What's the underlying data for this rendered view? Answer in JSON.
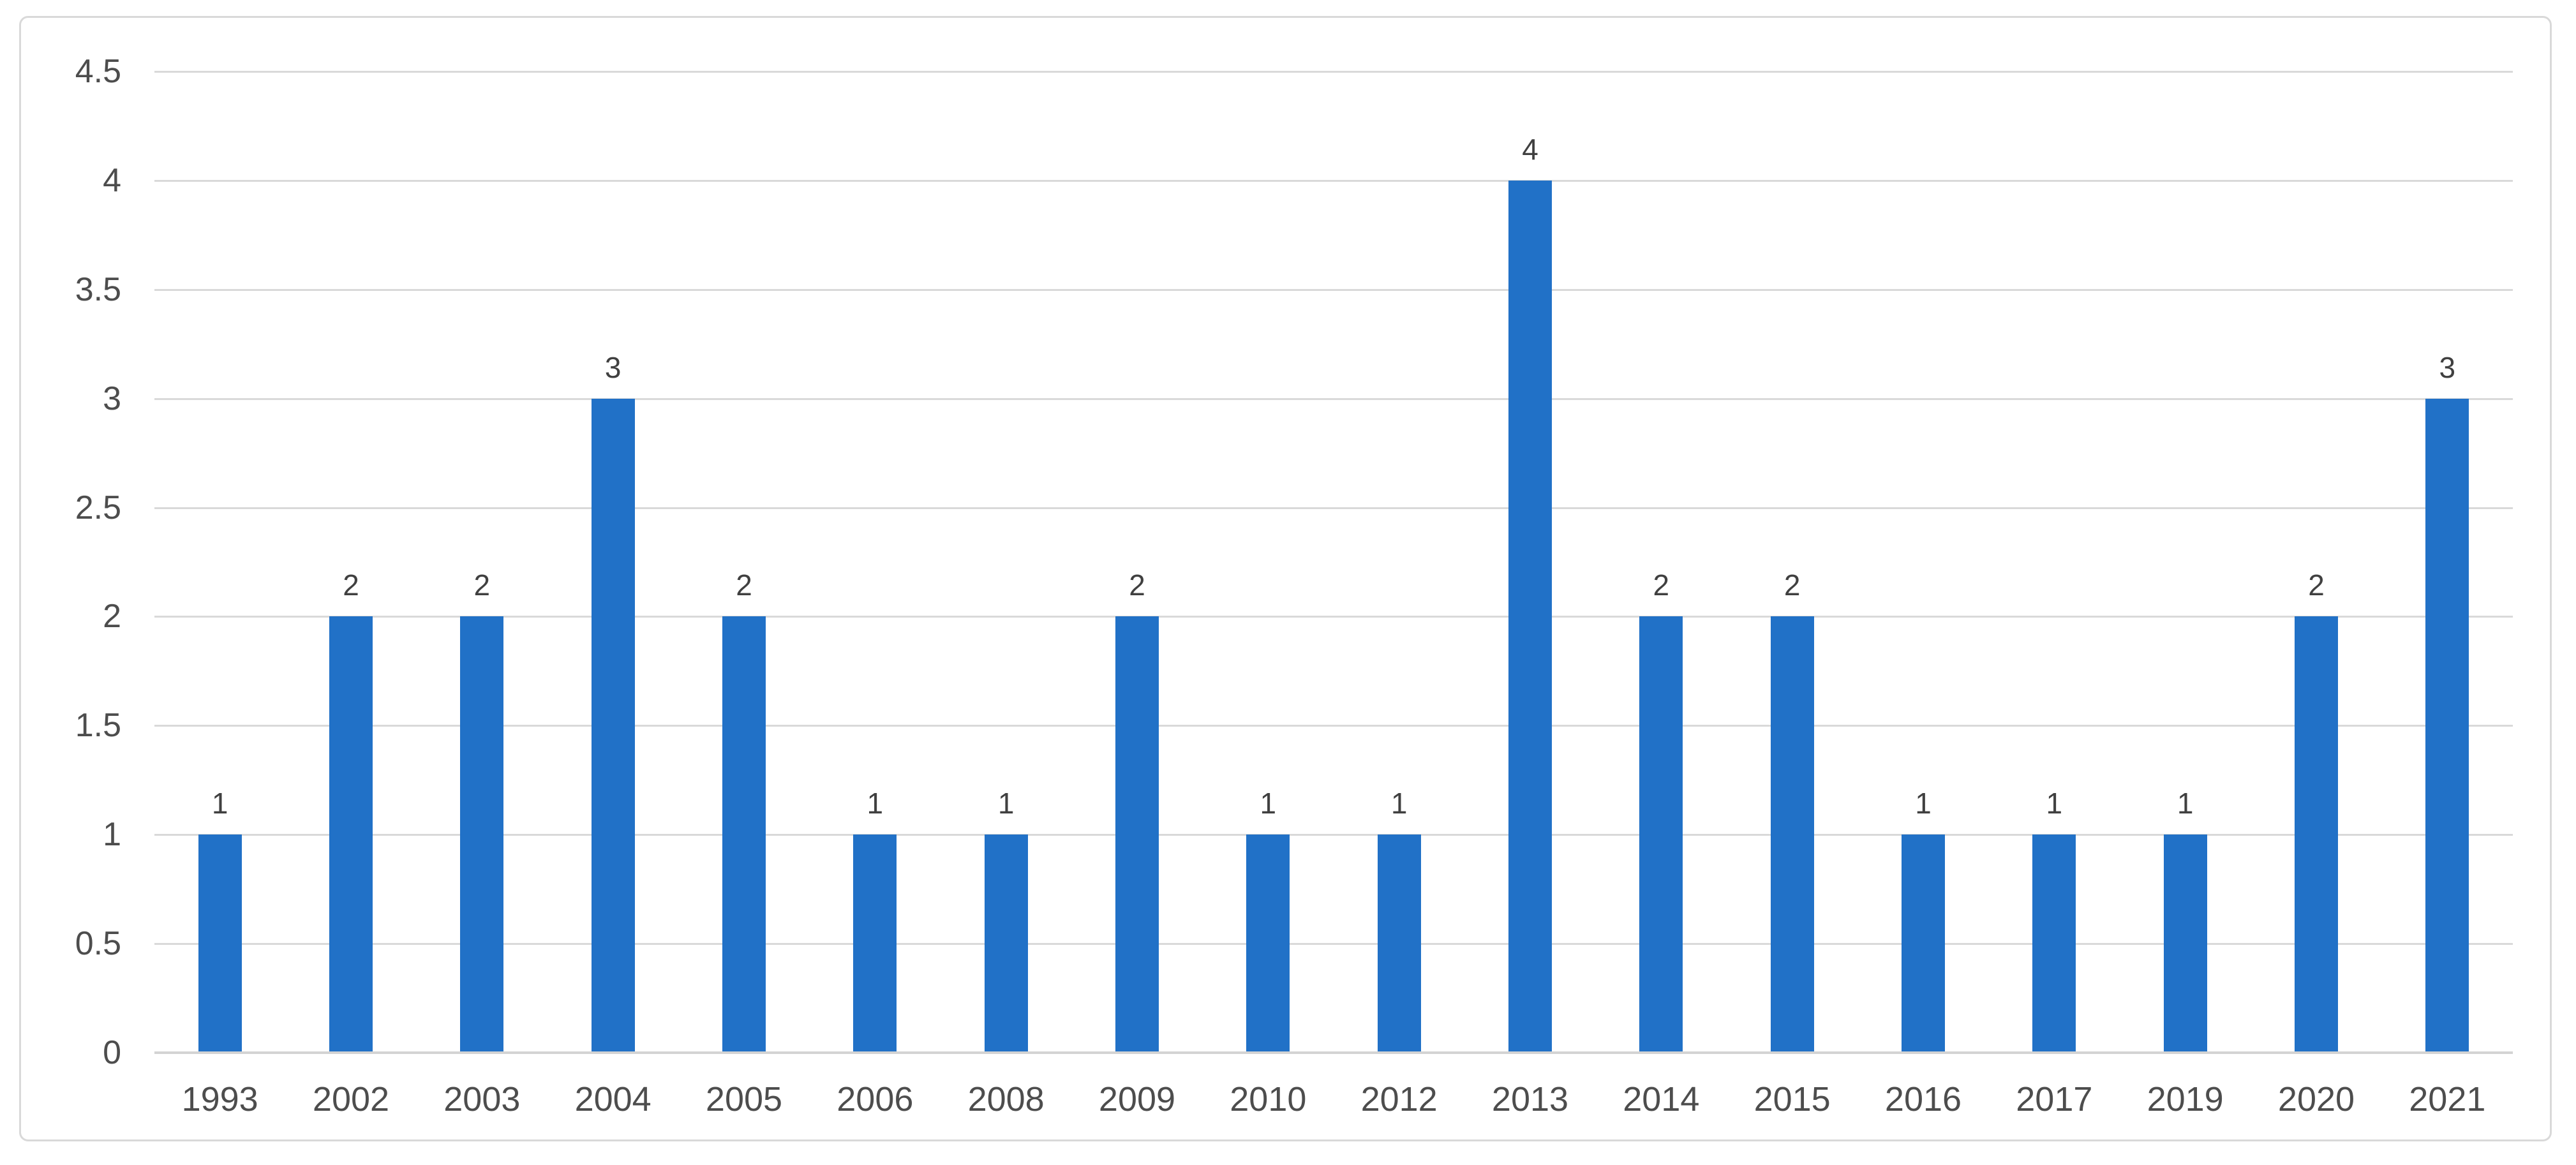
{
  "chart_data": {
    "type": "bar",
    "title": "",
    "xlabel": "",
    "ylabel": "",
    "categories": [
      "1993",
      "2002",
      "2003",
      "2004",
      "2005",
      "2006",
      "2008",
      "2009",
      "2010",
      "2012",
      "2013",
      "2014",
      "2015",
      "2016",
      "2017",
      "2019",
      "2020",
      "2021"
    ],
    "values": [
      1,
      2,
      2,
      3,
      2,
      1,
      1,
      2,
      1,
      1,
      4,
      2,
      2,
      1,
      1,
      1,
      2,
      3
    ],
    "data_labels": [
      "1",
      "2",
      "2",
      "3",
      "2",
      "1",
      "1",
      "2",
      "1",
      "1",
      "4",
      "2",
      "2",
      "1",
      "1",
      "1",
      "2",
      "3"
    ],
    "ylim": [
      0,
      4.5
    ],
    "ytick_step": 0.5,
    "yticks": [
      "0",
      "0.5",
      "1",
      "1.5",
      "2",
      "2.5",
      "3",
      "3.5",
      "4",
      "4.5"
    ],
    "grid": true,
    "legend": false,
    "colors": {
      "bar": "#2171C7",
      "gridline": "#D9D9D9",
      "axis_line": "#D3D3D3",
      "frame_border": "#D9D9D9",
      "tick_label": "#4D4D4D",
      "data_label": "#404040",
      "background": "#FFFFFF"
    }
  }
}
